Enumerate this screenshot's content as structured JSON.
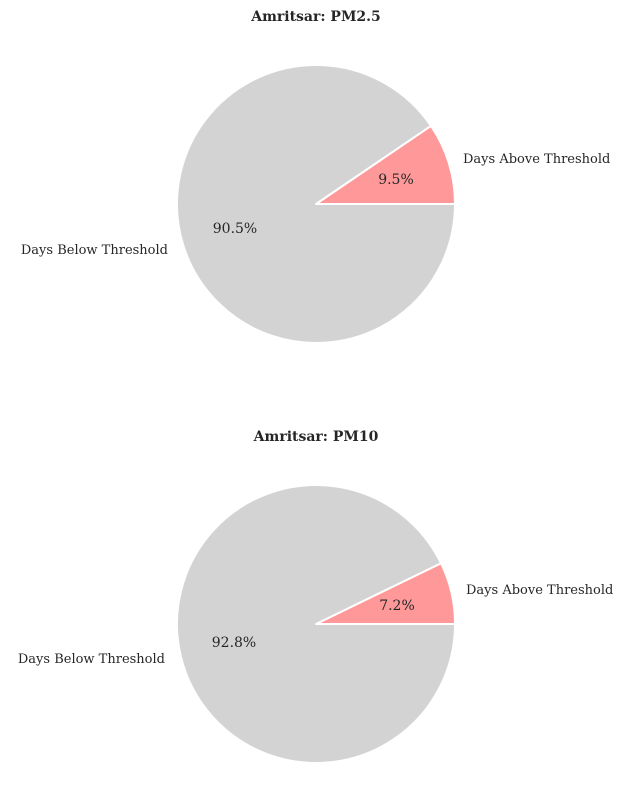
{
  "chart_data": [
    {
      "type": "pie",
      "title": "Amritsar: PM2.5",
      "labels": [
        "Days Above Threshold",
        "Days Below Threshold"
      ],
      "values": [
        9.5,
        90.5
      ],
      "pct_labels": [
        "9.5%",
        "90.5%"
      ],
      "colors": [
        "#ff9999",
        "#d3d3d3"
      ],
      "start_angle": 0,
      "direction": "counterclockwise",
      "legend": "none"
    },
    {
      "type": "pie",
      "title": "Amritsar: PM10",
      "labels": [
        "Days Above Threshold",
        "Days Below Threshold"
      ],
      "values": [
        7.2,
        92.8
      ],
      "pct_labels": [
        "7.2%",
        "92.8%"
      ],
      "colors": [
        "#ff9999",
        "#d3d3d3"
      ],
      "start_angle": 0,
      "direction": "counterclockwise",
      "legend": "none"
    }
  ]
}
